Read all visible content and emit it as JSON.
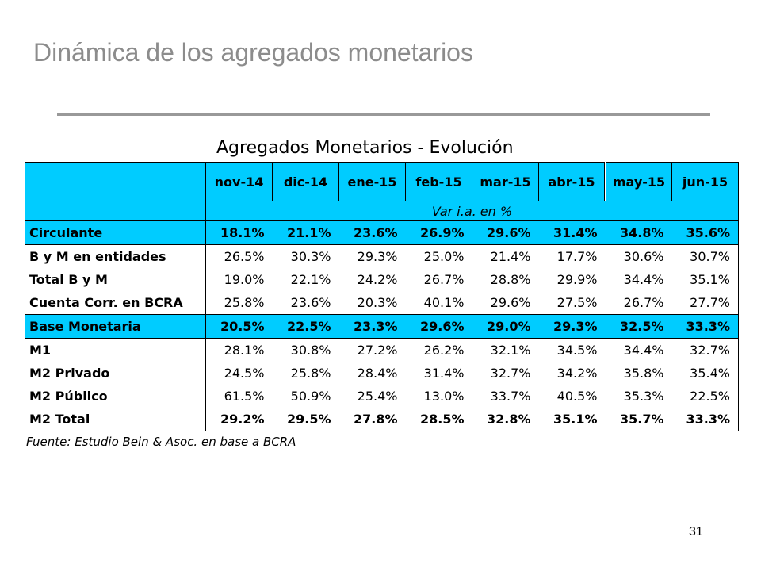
{
  "slide": {
    "title": "Dinámica de los agregados monetarios",
    "page_number": "31"
  },
  "table": {
    "title": "Agregados Monetarios - Evolución",
    "columns": [
      "nov-14",
      "dic-14",
      "ene-15",
      "feb-15",
      "mar-15",
      "abr-15",
      "may-15",
      "jun-15"
    ],
    "unit_label": "Var i.a. en %",
    "rows": [
      {
        "label": "Circulante",
        "values": [
          "18.1%",
          "21.1%",
          "23.6%",
          "26.9%",
          "29.6%",
          "31.4%",
          "34.8%",
          "35.6%"
        ]
      },
      {
        "label": "B y M en entidades",
        "values": [
          "26.5%",
          "30.3%",
          "29.3%",
          "25.0%",
          "21.4%",
          "17.7%",
          "30.6%",
          "30.7%"
        ]
      },
      {
        "label": "Total B y M",
        "values": [
          "19.0%",
          "22.1%",
          "24.2%",
          "26.7%",
          "28.8%",
          "29.9%",
          "34.4%",
          "35.1%"
        ]
      },
      {
        "label": "Cuenta Corr. en BCRA",
        "values": [
          "25.8%",
          "23.6%",
          "20.3%",
          "40.1%",
          "29.6%",
          "27.5%",
          "26.7%",
          "27.7%"
        ]
      },
      {
        "label": "Base Monetaria",
        "values": [
          "20.5%",
          "22.5%",
          "23.3%",
          "29.6%",
          "29.0%",
          "29.3%",
          "32.5%",
          "33.3%"
        ]
      },
      {
        "label": "M1",
        "values": [
          "28.1%",
          "30.8%",
          "27.2%",
          "26.2%",
          "32.1%",
          "34.5%",
          "34.4%",
          "32.7%"
        ]
      },
      {
        "label": "M2 Privado",
        "values": [
          "24.5%",
          "25.8%",
          "28.4%",
          "31.4%",
          "32.7%",
          "34.2%",
          "35.8%",
          "35.4%"
        ]
      },
      {
        "label": "M2 Público",
        "values": [
          "61.5%",
          "50.9%",
          "25.4%",
          "13.0%",
          "33.7%",
          "40.5%",
          "35.3%",
          "22.5%"
        ]
      },
      {
        "label": "M2 Total",
        "values": [
          "29.2%",
          "29.5%",
          "27.8%",
          "28.5%",
          "32.8%",
          "35.1%",
          "35.7%",
          "33.3%"
        ]
      }
    ],
    "source": "Fuente: Estudio Bein & Asoc. en base a BCRA"
  },
  "colors": {
    "highlight": "#00ccff",
    "title_gray": "#8c8c8c"
  }
}
